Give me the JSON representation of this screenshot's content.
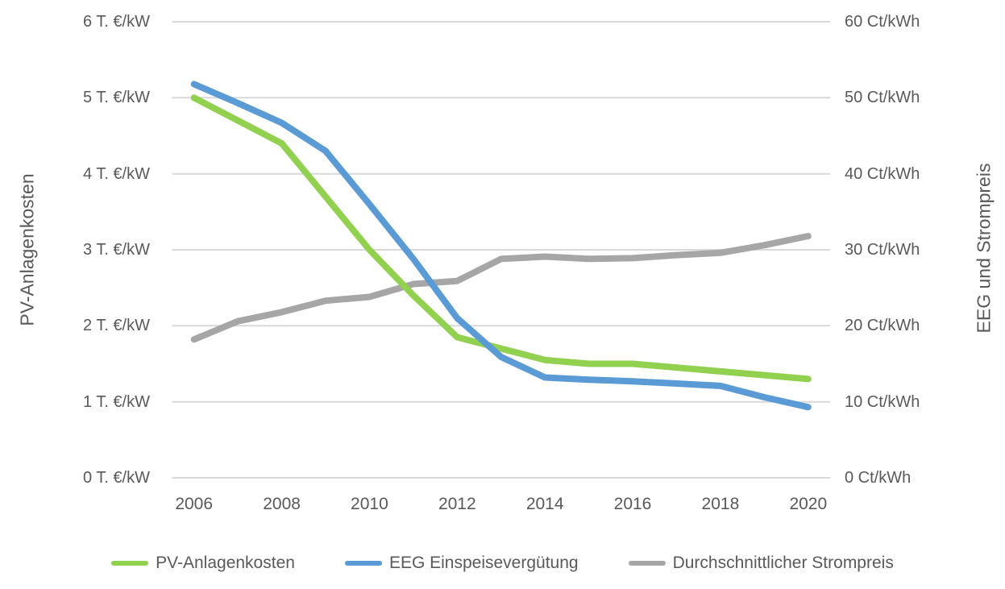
{
  "colors": {
    "background": "#ffffff",
    "grid": "#d9d9d9",
    "text": "#595959",
    "pv_green": "#92d050",
    "eeg_blue": "#5b9bd5",
    "strompreis_gray": "#a6a6a6"
  },
  "chart_data": {
    "type": "line",
    "grid": true,
    "legend_position": "bottom",
    "x": [
      2006,
      2007,
      2008,
      2009,
      2010,
      2011,
      2012,
      2013,
      2014,
      2015,
      2016,
      2017,
      2018,
      2019,
      2020
    ],
    "x_ticks": [
      {
        "index": 0,
        "label": "2006"
      },
      {
        "index": 2,
        "label": "2008"
      },
      {
        "index": 4,
        "label": "2010"
      },
      {
        "index": 6,
        "label": "2012"
      },
      {
        "index": 8,
        "label": "2014"
      },
      {
        "index": 10,
        "label": "2016"
      },
      {
        "index": 12,
        "label": "2018"
      },
      {
        "index": 14,
        "label": "2020"
      }
    ],
    "left_axis": {
      "title": "PV-Anlagenkosten",
      "range": [
        0,
        6
      ],
      "ticks": [
        0,
        1,
        2,
        3,
        4,
        5,
        6
      ],
      "tick_labels": [
        "0 T. €/kW",
        "1 T. €/kW",
        "2 T. €/kW",
        "3 T. €/kW",
        "4 T. €/kW",
        "5 T. €/kW",
        "6 T. €/kW"
      ]
    },
    "right_axis": {
      "title": "EEG und Strompreis",
      "range": [
        0,
        60
      ],
      "ticks": [
        0,
        10,
        20,
        30,
        40,
        50,
        60
      ],
      "tick_labels": [
        "0 Ct/kWh",
        "10 Ct/kWh",
        "20 Ct/kWh",
        "30 Ct/kWh",
        "40 Ct/kWh",
        "50 Ct/kWh",
        "60 Ct/kWh"
      ]
    },
    "series": [
      {
        "id": "pv-anlagenkosten",
        "name": "PV-Anlagenkosten",
        "color": "#92d050",
        "axis": "left",
        "unit": "T. €/kW",
        "values": [
          5.0,
          4.7,
          4.4,
          3.7,
          3.0,
          2.4,
          1.85,
          1.7,
          1.55,
          1.5,
          1.5,
          1.45,
          1.4,
          1.35,
          1.3
        ]
      },
      {
        "id": "eeg-einspeiseverguetung",
        "name": "EEG Einspeisevergütung",
        "color": "#5b9bd5",
        "axis": "right",
        "unit": "Ct/kWh",
        "values": [
          51.8,
          49.3,
          46.7,
          43.0,
          36.0,
          28.8,
          21.0,
          15.9,
          13.2,
          12.9,
          12.7,
          12.4,
          12.1,
          10.6,
          9.3
        ]
      },
      {
        "id": "durchschnittlicher-strompreis",
        "name": "Durchschnittlicher Strompreis",
        "color": "#a6a6a6",
        "axis": "right",
        "unit": "Ct/kWh",
        "values": [
          18.2,
          20.6,
          21.8,
          23.3,
          23.8,
          25.5,
          25.9,
          28.8,
          29.1,
          28.8,
          28.9,
          29.3,
          29.6,
          30.6,
          31.8
        ]
      }
    ]
  }
}
